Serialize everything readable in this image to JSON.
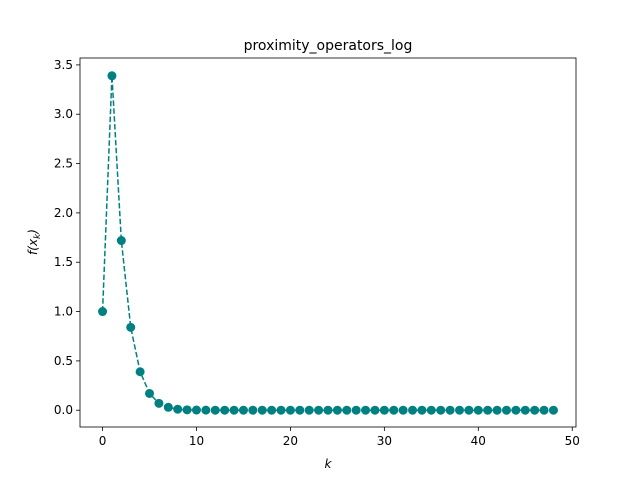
{
  "chart_data": {
    "type": "line",
    "title": "proximity_operators_log",
    "xlabel": "k",
    "ylabel_base": "f(x",
    "ylabel_sub": "k",
    "ylabel_close": ")",
    "xlim": [
      -2.4,
      50.4
    ],
    "ylim": [
      -0.17,
      3.57
    ],
    "x_ticks": [
      0,
      10,
      20,
      30,
      40,
      50
    ],
    "y_ticks": [
      0.0,
      0.5,
      1.0,
      1.5,
      2.0,
      2.5,
      3.0,
      3.5
    ],
    "x_tick_labels": [
      "0",
      "10",
      "20",
      "30",
      "40",
      "50"
    ],
    "y_tick_labels": [
      "0.0",
      "0.5",
      "1.0",
      "1.5",
      "2.0",
      "2.5",
      "3.0",
      "3.5"
    ],
    "grid": false,
    "series": [
      {
        "color": "#008080",
        "line_style": "dashed",
        "marker": "circle",
        "x": [
          0,
          1,
          2,
          3,
          4,
          5,
          6,
          7,
          8,
          9,
          10,
          11,
          12,
          13,
          14,
          15,
          16,
          17,
          18,
          19,
          20,
          21,
          22,
          23,
          24,
          25,
          26,
          27,
          28,
          29,
          30,
          31,
          32,
          33,
          34,
          35,
          36,
          37,
          38,
          39,
          40,
          41,
          42,
          43,
          44,
          45,
          46,
          47,
          48
        ],
        "y": [
          1.0,
          3.39,
          1.72,
          0.84,
          0.39,
          0.17,
          0.07,
          0.03,
          0.01,
          0.004,
          0.002,
          0.001,
          0,
          0,
          0,
          0,
          0,
          0,
          0,
          0,
          0,
          0,
          0,
          0,
          0,
          0,
          0,
          0,
          0,
          0,
          0,
          0,
          0,
          0,
          0,
          0,
          0,
          0,
          0,
          0,
          0,
          0,
          0,
          0,
          0,
          0,
          0,
          0,
          0
        ]
      }
    ]
  }
}
